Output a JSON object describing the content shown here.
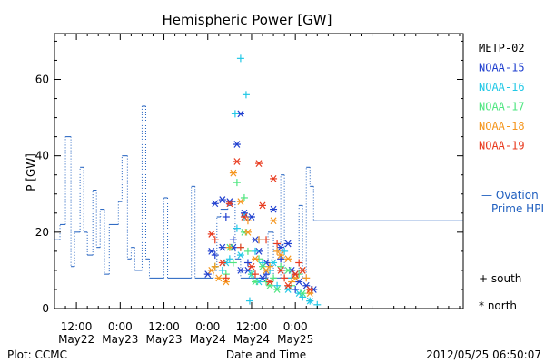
{
  "chart_data": {
    "type": "scatter",
    "title": "Hemispheric Power [GW]",
    "ylabel": "P [GW]",
    "xlabel": "Date and Time",
    "ylim": [
      0,
      72
    ],
    "yticks": [
      0,
      20,
      40,
      60
    ],
    "x_unit": "hours since 2012-05-21 00:00 UT",
    "xlim": [
      6,
      118
    ],
    "xticks": [
      {
        "x": 12,
        "line1": "12:00",
        "line2": "May22"
      },
      {
        "x": 24,
        "line1": "0:00",
        "line2": "May23"
      },
      {
        "x": 36,
        "line1": "12:00",
        "line2": "May23"
      },
      {
        "x": 48,
        "line1": "0:00",
        "line2": "May24"
      },
      {
        "x": 60,
        "line1": "12:00",
        "line2": "May24"
      },
      {
        "x": 72,
        "line1": "0:00",
        "line2": "May25"
      }
    ],
    "legend": {
      "placement": "right",
      "satellites": [
        {
          "name": "METP-02",
          "color": "#000000"
        },
        {
          "name": "NOAA-15",
          "color": "#1f3fcf"
        },
        {
          "name": "NOAA-16",
          "color": "#22c8e6"
        },
        {
          "name": "NOAA-17",
          "color": "#4ee680"
        },
        {
          "name": "NOAA-18",
          "color": "#f5961e"
        },
        {
          "name": "NOAA-19",
          "color": "#e83a1e"
        }
      ],
      "markers": [
        {
          "symbol": "+",
          "label": "south"
        },
        {
          "symbol": "*",
          "label": "north"
        }
      ],
      "ovation": {
        "symbol": "—",
        "label": "Ovation",
        "label2": "Prime HPI",
        "color": "#1f5fbf"
      }
    },
    "ovation_step": [
      [
        6,
        18
      ],
      [
        7.5,
        22
      ],
      [
        9,
        45
      ],
      [
        10.5,
        11
      ],
      [
        11.5,
        20
      ],
      [
        13,
        37
      ],
      [
        14,
        20
      ],
      [
        15,
        14
      ],
      [
        16.5,
        31
      ],
      [
        17.5,
        16
      ],
      [
        18.5,
        26
      ],
      [
        19.7,
        9
      ],
      [
        21,
        22
      ],
      [
        23.5,
        28
      ],
      [
        24.5,
        40
      ],
      [
        26,
        13
      ],
      [
        27,
        16
      ],
      [
        28,
        10
      ],
      [
        30,
        53
      ],
      [
        31,
        13
      ],
      [
        32,
        8
      ],
      [
        36,
        29
      ],
      [
        37,
        8
      ],
      [
        43.5,
        32
      ],
      [
        44.5,
        8
      ],
      [
        49.5,
        10
      ],
      [
        50.5,
        24
      ],
      [
        51.5,
        26
      ],
      [
        53.5,
        27
      ],
      [
        54.5,
        28
      ],
      [
        55.5,
        13
      ],
      [
        57,
        8
      ],
      [
        64.5,
        20
      ],
      [
        66,
        8
      ],
      [
        68,
        35
      ],
      [
        69,
        8
      ],
      [
        71,
        9
      ],
      [
        73,
        27
      ],
      [
        74,
        8
      ],
      [
        75,
        37
      ],
      [
        76,
        32
      ],
      [
        77,
        23
      ],
      [
        78,
        23
      ]
    ],
    "series": [
      {
        "satellite": "NOAA-15",
        "hemisphere": "north",
        "points": [
          [
            50,
            27.5
          ],
          [
            52,
            28.5
          ],
          [
            54,
            28
          ],
          [
            56,
            43
          ],
          [
            57,
            51
          ],
          [
            58,
            25
          ],
          [
            60,
            24
          ],
          [
            49,
            15
          ],
          [
            52,
            16
          ],
          [
            55,
            16
          ],
          [
            57,
            10
          ],
          [
            59,
            10
          ],
          [
            61,
            18
          ],
          [
            62,
            15
          ],
          [
            63,
            8
          ],
          [
            64,
            12
          ],
          [
            66,
            26
          ],
          [
            68,
            16
          ],
          [
            70,
            17
          ],
          [
            71,
            10
          ],
          [
            72,
            9
          ],
          [
            73,
            7
          ],
          [
            75,
            6
          ],
          [
            77,
            5
          ],
          [
            48,
            9
          ]
        ]
      },
      {
        "satellite": "NOAA-15",
        "hemisphere": "south",
        "points": [
          [
            50,
            14
          ],
          [
            53,
            24
          ],
          [
            55,
            18
          ],
          [
            59,
            12
          ],
          [
            62,
            18
          ],
          [
            64,
            9
          ],
          [
            68,
            13
          ],
          [
            72,
            5
          ]
        ]
      },
      {
        "satellite": "NOAA-16",
        "hemisphere": "south",
        "points": [
          [
            55.5,
            51
          ],
          [
            57,
            65.5
          ],
          [
            58.5,
            56
          ],
          [
            52,
            10
          ],
          [
            54,
            13
          ],
          [
            56,
            21
          ],
          [
            58,
            24
          ],
          [
            59.5,
            2
          ],
          [
            61,
            15
          ],
          [
            63,
            12
          ],
          [
            65,
            10
          ],
          [
            67,
            6
          ],
          [
            69,
            15
          ],
          [
            71,
            8
          ],
          [
            74,
            3
          ],
          [
            76,
            2
          ],
          [
            78,
            1
          ]
        ]
      },
      {
        "satellite": "NOAA-16",
        "hemisphere": "north",
        "points": [
          [
            53,
            12
          ],
          [
            57,
            14
          ],
          [
            60,
            9
          ],
          [
            62,
            7
          ],
          [
            66,
            12
          ],
          [
            70,
            5
          ],
          [
            73,
            4
          ],
          [
            76,
            2
          ]
        ]
      },
      {
        "satellite": "NOAA-17",
        "hemisphere": "south",
        "points": [
          [
            56,
            33
          ],
          [
            58,
            29
          ],
          [
            50,
            11
          ],
          [
            53,
            9
          ],
          [
            55,
            12
          ],
          [
            57,
            16
          ],
          [
            59,
            15
          ],
          [
            60,
            9
          ],
          [
            62,
            13
          ],
          [
            64,
            7
          ],
          [
            66,
            8
          ],
          [
            68,
            11
          ],
          [
            71,
            6
          ],
          [
            73,
            9
          ]
        ]
      },
      {
        "satellite": "NOAA-17",
        "hemisphere": "north",
        "points": [
          [
            54,
            16
          ],
          [
            58,
            20
          ],
          [
            61,
            7
          ],
          [
            63,
            11
          ],
          [
            65,
            6
          ],
          [
            67,
            5
          ],
          [
            70,
            10
          ],
          [
            74,
            4
          ]
        ]
      },
      {
        "satellite": "NOAA-18",
        "hemisphere": "north",
        "points": [
          [
            55,
            35.5
          ],
          [
            49,
            10
          ],
          [
            51,
            8
          ],
          [
            53,
            7
          ],
          [
            57,
            28
          ],
          [
            59,
            20
          ],
          [
            61,
            13
          ],
          [
            64,
            10
          ],
          [
            66,
            23
          ],
          [
            68,
            14
          ],
          [
            70,
            13
          ],
          [
            72,
            8
          ],
          [
            74,
            10
          ],
          [
            76,
            4
          ]
        ]
      },
      {
        "satellite": "NOAA-18",
        "hemisphere": "south",
        "points": [
          [
            50,
            11
          ],
          [
            54,
            16
          ],
          [
            59,
            23
          ],
          [
            62,
            18
          ],
          [
            65,
            11
          ],
          [
            67,
            15
          ],
          [
            71,
            7
          ],
          [
            75,
            8
          ]
        ]
      },
      {
        "satellite": "NOAA-19",
        "hemisphere": "north",
        "points": [
          [
            54,
            27.5
          ],
          [
            56,
            38.5
          ],
          [
            49,
            19.5
          ],
          [
            52,
            12
          ],
          [
            58,
            24
          ],
          [
            60,
            11
          ],
          [
            62,
            38
          ],
          [
            63,
            27
          ],
          [
            65,
            7
          ],
          [
            66,
            34
          ],
          [
            68,
            10
          ],
          [
            70,
            6
          ],
          [
            72,
            9
          ],
          [
            74,
            10
          ],
          [
            76,
            5
          ]
        ]
      },
      {
        "satellite": "NOAA-19",
        "hemisphere": "south",
        "points": [
          [
            50,
            18
          ],
          [
            53,
            8
          ],
          [
            57,
            16
          ],
          [
            61,
            9
          ],
          [
            64,
            18
          ],
          [
            67,
            17
          ],
          [
            69,
            8
          ],
          [
            73,
            12
          ]
        ]
      }
    ]
  },
  "footer": {
    "left": "Plot: CCMC",
    "center": "Date and Time",
    "right": "2012/05/25 06:50:07"
  }
}
